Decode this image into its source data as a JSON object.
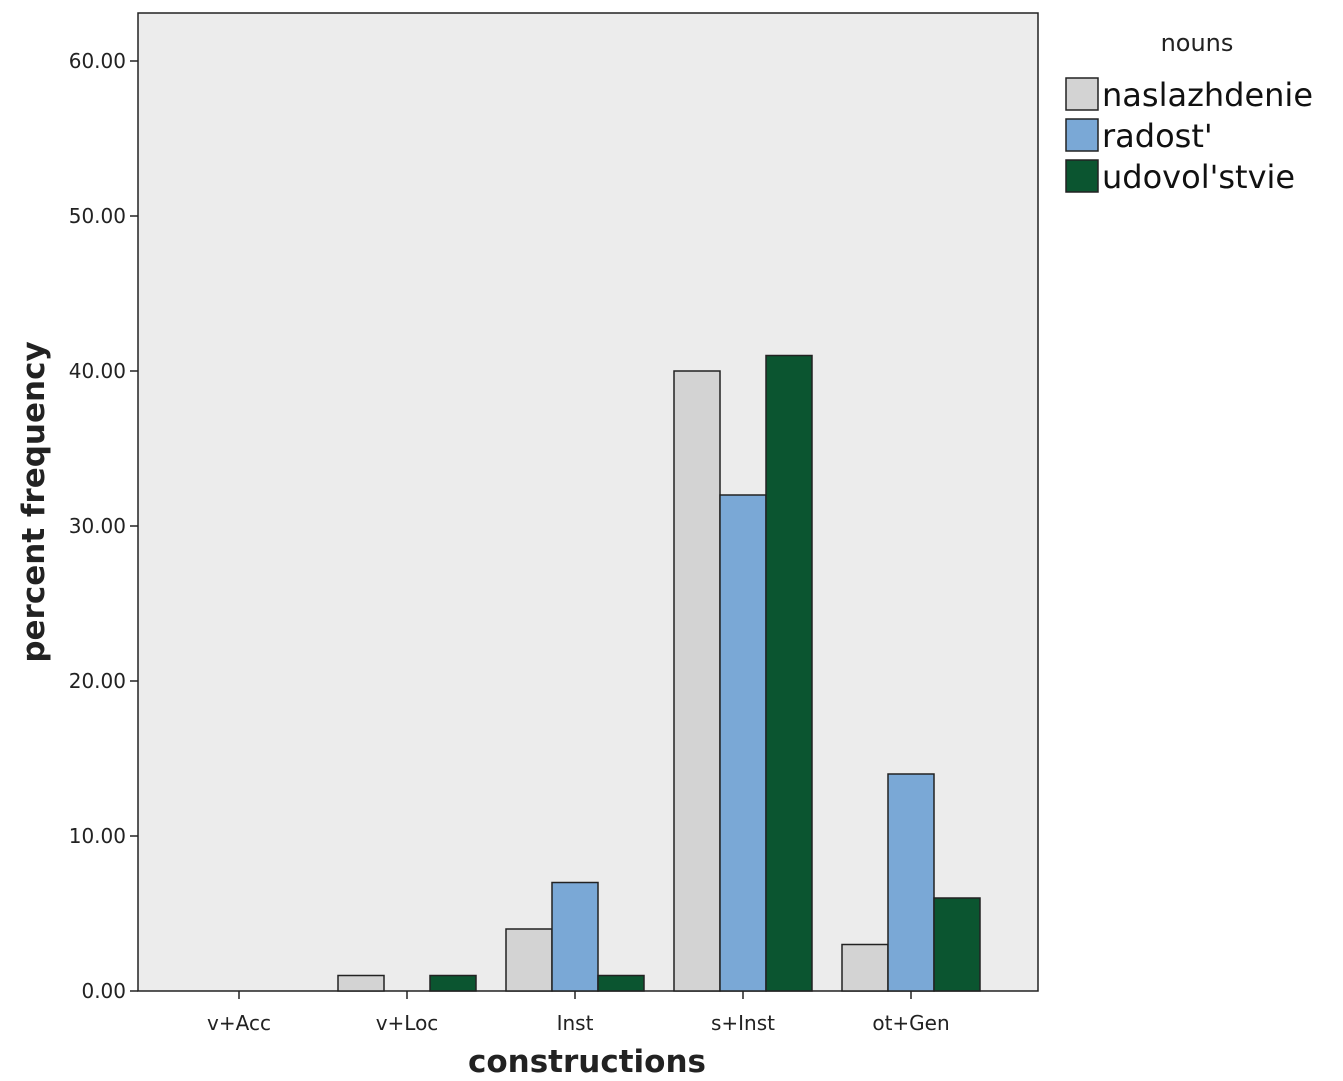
{
  "chart_data": {
    "type": "bar",
    "title": "",
    "xlabel": "constructions",
    "ylabel": "percent frequency",
    "categories": [
      "v+Acc",
      "v+Loc",
      "Inst",
      "s+Inst",
      "ot+Gen"
    ],
    "ylim": [
      0,
      63
    ],
    "yticks": [
      0,
      10,
      20,
      30,
      40,
      50,
      60
    ],
    "ytick_labels": [
      "0.00",
      "10.00",
      "20.00",
      "30.00",
      "40.00",
      "50.00",
      "60.00"
    ],
    "legend_title": "nouns",
    "legend_position": "top-right",
    "grid": false,
    "series": [
      {
        "name": "naslazhdenie",
        "color": "#d3d3d3",
        "values": [
          0,
          1,
          4,
          40,
          3
        ]
      },
      {
        "name": "radost'",
        "color": "#7aa8d6",
        "values": [
          0,
          0,
          7,
          32,
          14
        ]
      },
      {
        "name": "udovol'stvie",
        "color": "#0b5530",
        "values": [
          0,
          1,
          1,
          41,
          6
        ]
      }
    ]
  }
}
